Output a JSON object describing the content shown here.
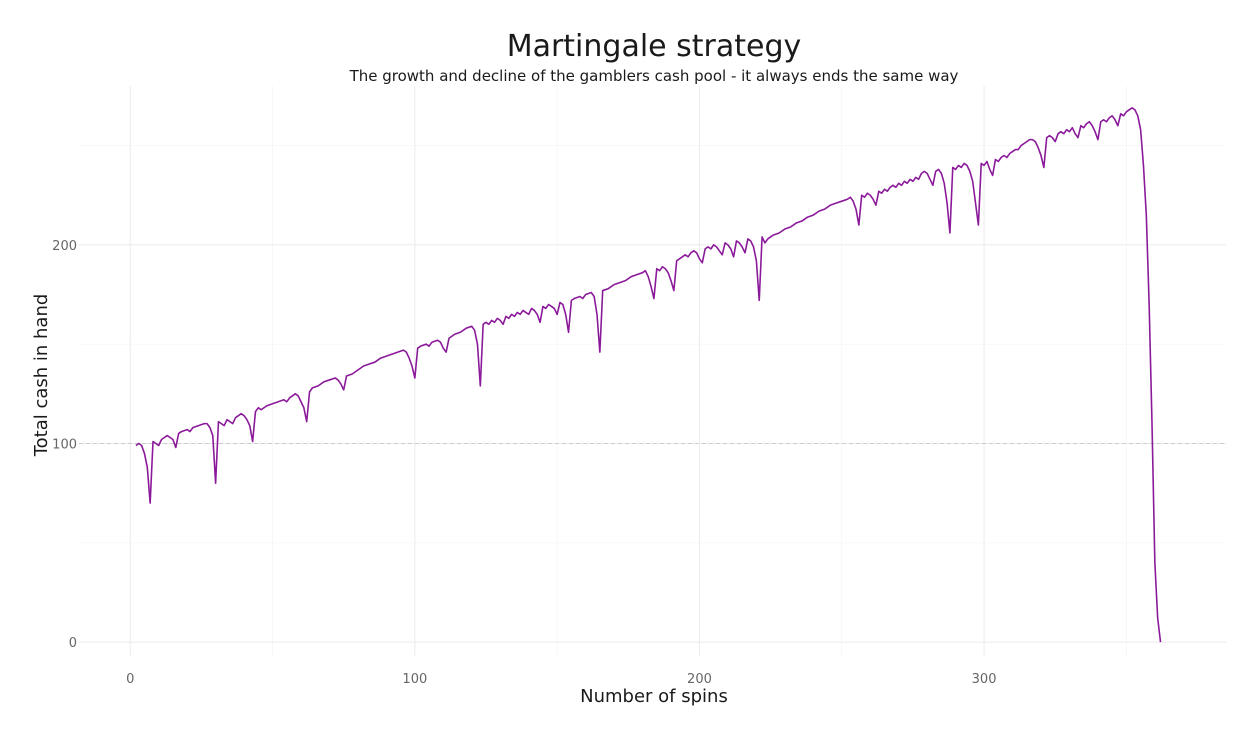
{
  "chart_data": {
    "type": "line",
    "title": "Martingale strategy",
    "subtitle": "The growth and decline of the gamblers cash pool - it always ends the same way",
    "xlabel": "Number of spins",
    "ylabel": "Total cash in hand",
    "xlim": [
      -18,
      385
    ],
    "ylim": [
      -7,
      280
    ],
    "xticks": [
      0,
      100,
      200,
      300
    ],
    "yticks": [
      0,
      100,
      200
    ],
    "reference_line": {
      "y": 100,
      "style": "dashed"
    },
    "grid": true,
    "color": "#8B1A9A",
    "series": [
      {
        "points": [
          [
            2,
            99
          ],
          [
            3,
            100
          ],
          [
            4,
            99
          ],
          [
            5,
            95
          ],
          [
            6,
            88
          ],
          [
            7,
            70
          ],
          [
            8,
            101
          ],
          [
            9,
            100
          ],
          [
            10,
            99
          ],
          [
            11,
            102
          ],
          [
            12,
            103
          ],
          [
            13,
            104
          ],
          [
            14,
            103
          ],
          [
            15,
            102
          ],
          [
            16,
            98
          ],
          [
            17,
            105
          ],
          [
            18,
            106
          ],
          [
            20,
            107
          ],
          [
            21,
            106
          ],
          [
            22,
            108
          ],
          [
            24,
            109
          ],
          [
            26,
            110
          ],
          [
            27,
            110
          ],
          [
            28,
            108
          ],
          [
            29,
            104
          ],
          [
            30,
            80
          ],
          [
            31,
            111
          ],
          [
            32,
            110
          ],
          [
            33,
            109
          ],
          [
            34,
            112
          ],
          [
            35,
            111
          ],
          [
            36,
            110
          ],
          [
            37,
            113
          ],
          [
            38,
            114
          ],
          [
            39,
            115
          ],
          [
            40,
            114
          ],
          [
            41,
            112
          ],
          [
            42,
            109
          ],
          [
            43,
            101
          ],
          [
            44,
            116
          ],
          [
            45,
            118
          ],
          [
            46,
            117
          ],
          [
            48,
            119
          ],
          [
            50,
            120
          ],
          [
            52,
            121
          ],
          [
            54,
            122
          ],
          [
            55,
            121
          ],
          [
            56,
            123
          ],
          [
            58,
            125
          ],
          [
            59,
            124
          ],
          [
            60,
            121
          ],
          [
            61,
            118
          ],
          [
            62,
            111
          ],
          [
            63,
            126
          ],
          [
            64,
            128
          ],
          [
            66,
            129
          ],
          [
            68,
            131
          ],
          [
            70,
            132
          ],
          [
            72,
            133
          ],
          [
            73,
            132
          ],
          [
            74,
            130
          ],
          [
            75,
            127
          ],
          [
            76,
            134
          ],
          [
            78,
            135
          ],
          [
            80,
            137
          ],
          [
            82,
            139
          ],
          [
            84,
            140
          ],
          [
            86,
            141
          ],
          [
            88,
            143
          ],
          [
            90,
            144
          ],
          [
            92,
            145
          ],
          [
            94,
            146
          ],
          [
            96,
            147
          ],
          [
            97,
            146
          ],
          [
            98,
            143
          ],
          [
            99,
            139
          ],
          [
            100,
            133
          ],
          [
            101,
            148
          ],
          [
            102,
            149
          ],
          [
            104,
            150
          ],
          [
            105,
            149
          ],
          [
            106,
            151
          ],
          [
            108,
            152
          ],
          [
            109,
            151
          ],
          [
            110,
            148
          ],
          [
            111,
            146
          ],
          [
            112,
            153
          ],
          [
            114,
            155
          ],
          [
            116,
            156
          ],
          [
            118,
            158
          ],
          [
            120,
            159
          ],
          [
            121,
            157
          ],
          [
            122,
            150
          ],
          [
            123,
            129
          ],
          [
            124,
            160
          ],
          [
            125,
            161
          ],
          [
            126,
            160
          ],
          [
            127,
            162
          ],
          [
            128,
            161
          ],
          [
            129,
            163
          ],
          [
            130,
            162
          ],
          [
            131,
            160
          ],
          [
            132,
            164
          ],
          [
            133,
            163
          ],
          [
            134,
            165
          ],
          [
            135,
            164
          ],
          [
            136,
            166
          ],
          [
            137,
            165
          ],
          [
            138,
            167
          ],
          [
            139,
            166
          ],
          [
            140,
            165
          ],
          [
            141,
            168
          ],
          [
            142,
            167
          ],
          [
            143,
            165
          ],
          [
            144,
            161
          ],
          [
            145,
            169
          ],
          [
            146,
            168
          ],
          [
            147,
            170
          ],
          [
            148,
            169
          ],
          [
            149,
            168
          ],
          [
            150,
            165
          ],
          [
            151,
            171
          ],
          [
            152,
            170
          ],
          [
            153,
            165
          ],
          [
            154,
            156
          ],
          [
            155,
            172
          ],
          [
            156,
            173
          ],
          [
            158,
            174
          ],
          [
            159,
            173
          ],
          [
            160,
            175
          ],
          [
            162,
            176
          ],
          [
            163,
            174
          ],
          [
            164,
            165
          ],
          [
            165,
            146
          ],
          [
            166,
            177
          ],
          [
            168,
            178
          ],
          [
            170,
            180
          ],
          [
            172,
            181
          ],
          [
            174,
            182
          ],
          [
            176,
            184
          ],
          [
            178,
            185
          ],
          [
            180,
            186
          ],
          [
            181,
            187
          ],
          [
            182,
            184
          ],
          [
            183,
            179
          ],
          [
            184,
            173
          ],
          [
            185,
            188
          ],
          [
            186,
            187
          ],
          [
            187,
            189
          ],
          [
            188,
            188
          ],
          [
            189,
            186
          ],
          [
            190,
            182
          ],
          [
            191,
            177
          ],
          [
            192,
            192
          ],
          [
            193,
            193
          ],
          [
            194,
            194
          ],
          [
            195,
            195
          ],
          [
            196,
            194
          ],
          [
            197,
            196
          ],
          [
            198,
            197
          ],
          [
            199,
            196
          ],
          [
            200,
            193
          ],
          [
            201,
            191
          ],
          [
            202,
            198
          ],
          [
            203,
            199
          ],
          [
            204,
            198
          ],
          [
            205,
            200
          ],
          [
            206,
            199
          ],
          [
            207,
            197
          ],
          [
            208,
            195
          ],
          [
            209,
            201
          ],
          [
            210,
            200
          ],
          [
            211,
            198
          ],
          [
            212,
            194
          ],
          [
            213,
            202
          ],
          [
            214,
            201
          ],
          [
            215,
            199
          ],
          [
            216,
            196
          ],
          [
            217,
            203
          ],
          [
            218,
            202
          ],
          [
            219,
            199
          ],
          [
            220,
            192
          ],
          [
            221,
            172
          ],
          [
            222,
            204
          ],
          [
            223,
            201
          ],
          [
            224,
            203
          ],
          [
            226,
            205
          ],
          [
            228,
            206
          ],
          [
            230,
            208
          ],
          [
            232,
            209
          ],
          [
            234,
            211
          ],
          [
            236,
            212
          ],
          [
            238,
            214
          ],
          [
            240,
            215
          ],
          [
            242,
            217
          ],
          [
            244,
            218
          ],
          [
            246,
            220
          ],
          [
            248,
            221
          ],
          [
            250,
            222
          ],
          [
            252,
            223
          ],
          [
            253,
            224
          ],
          [
            254,
            222
          ],
          [
            255,
            218
          ],
          [
            256,
            210
          ],
          [
            257,
            225
          ],
          [
            258,
            224
          ],
          [
            259,
            226
          ],
          [
            260,
            225
          ],
          [
            261,
            223
          ],
          [
            262,
            220
          ],
          [
            263,
            227
          ],
          [
            264,
            226
          ],
          [
            265,
            228
          ],
          [
            266,
            227
          ],
          [
            267,
            229
          ],
          [
            268,
            230
          ],
          [
            269,
            229
          ],
          [
            270,
            231
          ],
          [
            271,
            230
          ],
          [
            272,
            232
          ],
          [
            273,
            231
          ],
          [
            274,
            233
          ],
          [
            275,
            232
          ],
          [
            276,
            234
          ],
          [
            277,
            233
          ],
          [
            278,
            236
          ],
          [
            279,
            237
          ],
          [
            280,
            236
          ],
          [
            281,
            233
          ],
          [
            282,
            230
          ],
          [
            283,
            237
          ],
          [
            284,
            238
          ],
          [
            285,
            236
          ],
          [
            286,
            231
          ],
          [
            287,
            221
          ],
          [
            288,
            206
          ],
          [
            289,
            239
          ],
          [
            290,
            238
          ],
          [
            291,
            240
          ],
          [
            292,
            239
          ],
          [
            293,
            241
          ],
          [
            294,
            240
          ],
          [
            295,
            237
          ],
          [
            296,
            232
          ],
          [
            297,
            221
          ],
          [
            298,
            210
          ],
          [
            299,
            241
          ],
          [
            300,
            240
          ],
          [
            301,
            242
          ],
          [
            302,
            238
          ],
          [
            303,
            235
          ],
          [
            304,
            243
          ],
          [
            305,
            242
          ],
          [
            306,
            244
          ],
          [
            307,
            245
          ],
          [
            308,
            244
          ],
          [
            309,
            246
          ],
          [
            310,
            247
          ],
          [
            311,
            248
          ],
          [
            312,
            248
          ],
          [
            313,
            250
          ],
          [
            314,
            251
          ],
          [
            315,
            252
          ],
          [
            316,
            253
          ],
          [
            317,
            253
          ],
          [
            318,
            252
          ],
          [
            319,
            249
          ],
          [
            320,
            245
          ],
          [
            321,
            239
          ],
          [
            322,
            254
          ],
          [
            323,
            255
          ],
          [
            324,
            254
          ],
          [
            325,
            252
          ],
          [
            326,
            256
          ],
          [
            327,
            257
          ],
          [
            328,
            256
          ],
          [
            329,
            258
          ],
          [
            330,
            257
          ],
          [
            331,
            259
          ],
          [
            332,
            256
          ],
          [
            333,
            254
          ],
          [
            334,
            260
          ],
          [
            335,
            259
          ],
          [
            336,
            261
          ],
          [
            337,
            262
          ],
          [
            338,
            260
          ],
          [
            339,
            257
          ],
          [
            340,
            253
          ],
          [
            341,
            262
          ],
          [
            342,
            263
          ],
          [
            343,
            262
          ],
          [
            344,
            264
          ],
          [
            345,
            265
          ],
          [
            346,
            263
          ],
          [
            347,
            260
          ],
          [
            348,
            266
          ],
          [
            349,
            265
          ],
          [
            350,
            267
          ],
          [
            351,
            268
          ],
          [
            352,
            269
          ],
          [
            353,
            268
          ],
          [
            354,
            265
          ],
          [
            355,
            258
          ],
          [
            356,
            240
          ],
          [
            357,
            215
          ],
          [
            358,
            170
          ],
          [
            359,
            110
          ],
          [
            360,
            40
          ],
          [
            361,
            12
          ],
          [
            362,
            0
          ]
        ]
      }
    ]
  }
}
